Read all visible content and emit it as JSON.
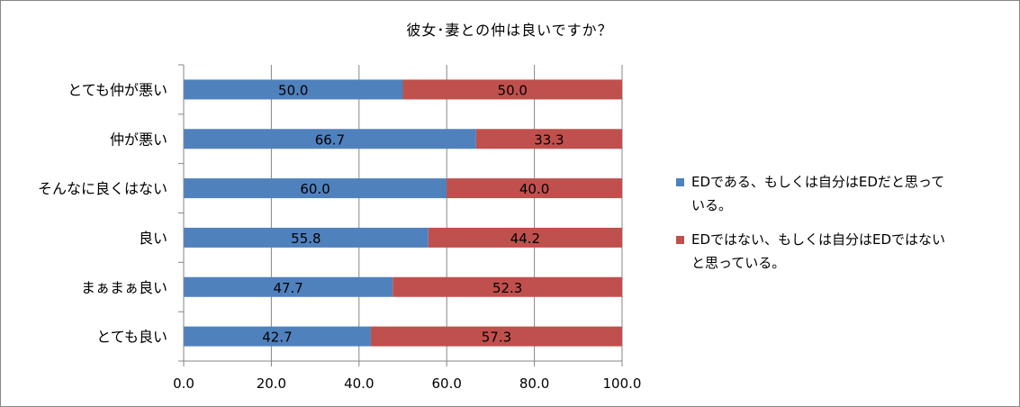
{
  "chart_data": {
    "type": "bar",
    "stacked": true,
    "orientation": "horizontal",
    "title": "彼女･妻との仲は良いですか？",
    "categories": [
      "とても仲が悪い",
      "仲が悪い",
      "そんなに良くはない",
      "良い",
      "まぁまぁ良い",
      "とても良い"
    ],
    "series": [
      {
        "name": "EDである、もしくは自分はEDだと思っている。",
        "legend_lines": [
          "EDである、もしくは自分はEDだと思って",
          "いる。"
        ],
        "color": "#4f81bd",
        "values": [
          50.0,
          66.7,
          60.0,
          55.8,
          47.7,
          42.7
        ]
      },
      {
        "name": "EDではない、もしくは自分はEDではないと思っている。",
        "legend_lines": [
          "EDではない、もしくは自分はEDではない",
          "と思っている。"
        ],
        "color": "#c0504d",
        "values": [
          50.0,
          33.3,
          40.0,
          44.2,
          52.3,
          57.3
        ]
      }
    ],
    "xlim": [
      0,
      100
    ],
    "xticks": [
      "0.0",
      "20.0",
      "40.0",
      "60.0",
      "80.0",
      "100.0"
    ],
    "gridlines": true,
    "legend_position": "right"
  }
}
